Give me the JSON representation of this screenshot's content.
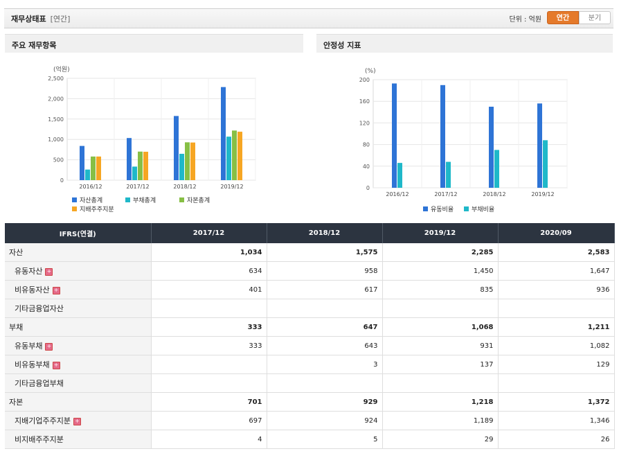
{
  "header": {
    "title": "재무상태표",
    "subtitle": "[연간]",
    "unit_label": "단위 : 억원",
    "btn_annual": "연간",
    "btn_quarter": "분기"
  },
  "panels": {
    "left_title": "주요 재무항목",
    "right_title": "안정성 지표"
  },
  "colors": {
    "asset": "#2e74d6",
    "liability": "#1fb8c9",
    "equity": "#87bf45",
    "controlling": "#f6a623",
    "accent": "#e57a2b"
  },
  "chart_data": [
    {
      "type": "bar",
      "ylabel": "(억원)",
      "ylim": [
        0,
        2500
      ],
      "yticks": [
        "0",
        "500",
        "1,000",
        "1,500",
        "2,000",
        "2,500"
      ],
      "yticks_values": [
        0,
        500,
        1000,
        1500,
        2000,
        2500
      ],
      "categories": [
        "2016/12",
        "2017/12",
        "2018/12",
        "2019/12"
      ],
      "legend_position": "bottom",
      "grid": true,
      "series": [
        {
          "name": "자산총계",
          "values": [
            840,
            1034,
            1575,
            2285
          ]
        },
        {
          "name": "부채총계",
          "values": [
            260,
            333,
            647,
            1068
          ]
        },
        {
          "name": "자본총계",
          "values": [
            580,
            701,
            929,
            1218
          ]
        },
        {
          "name": "지배주주지분",
          "values": [
            580,
            697,
            924,
            1189
          ]
        }
      ]
    },
    {
      "type": "bar",
      "ylabel": "(%)",
      "ylim": [
        0,
        200
      ],
      "yticks": [
        "0",
        "40",
        "80",
        "120",
        "160",
        "200"
      ],
      "yticks_values": [
        0,
        40,
        80,
        120,
        160,
        200
      ],
      "categories": [
        "2016/12",
        "2017/12",
        "2018/12",
        "2019/12"
      ],
      "legend_position": "bottom",
      "grid": true,
      "series": [
        {
          "name": "유동비율",
          "values": [
            193,
            190,
            150,
            156
          ]
        },
        {
          "name": "부채비율",
          "values": [
            46,
            48,
            70,
            88
          ]
        }
      ]
    }
  ],
  "table": {
    "headers": [
      "IFRS(연결)",
      "2017/12",
      "2018/12",
      "2019/12",
      "2020/09"
    ],
    "rows": [
      {
        "label": "자산",
        "major": true,
        "plus": false,
        "values": [
          "1,034",
          "1,575",
          "2,285",
          "2,583"
        ]
      },
      {
        "label": "유동자산",
        "major": false,
        "plus": true,
        "values": [
          "634",
          "958",
          "1,450",
          "1,647"
        ]
      },
      {
        "label": "비유동자산",
        "major": false,
        "plus": true,
        "values": [
          "401",
          "617",
          "835",
          "936"
        ]
      },
      {
        "label": "기타금융업자산",
        "major": false,
        "plus": false,
        "values": [
          "",
          "",
          "",
          ""
        ]
      },
      {
        "label": "부채",
        "major": true,
        "plus": false,
        "values": [
          "333",
          "647",
          "1,068",
          "1,211"
        ]
      },
      {
        "label": "유동부채",
        "major": false,
        "plus": true,
        "values": [
          "333",
          "643",
          "931",
          "1,082"
        ]
      },
      {
        "label": "비유동부채",
        "major": false,
        "plus": true,
        "values": [
          "",
          "3",
          "137",
          "129"
        ]
      },
      {
        "label": "기타금융업부채",
        "major": false,
        "plus": false,
        "values": [
          "",
          "",
          "",
          ""
        ]
      },
      {
        "label": "자본",
        "major": true,
        "plus": false,
        "values": [
          "701",
          "929",
          "1,218",
          "1,372"
        ]
      },
      {
        "label": "지배기업주주지분",
        "major": false,
        "plus": true,
        "values": [
          "697",
          "924",
          "1,189",
          "1,346"
        ]
      },
      {
        "label": "비지배주주지분",
        "major": false,
        "plus": false,
        "values": [
          "4",
          "5",
          "29",
          "26"
        ]
      }
    ]
  }
}
